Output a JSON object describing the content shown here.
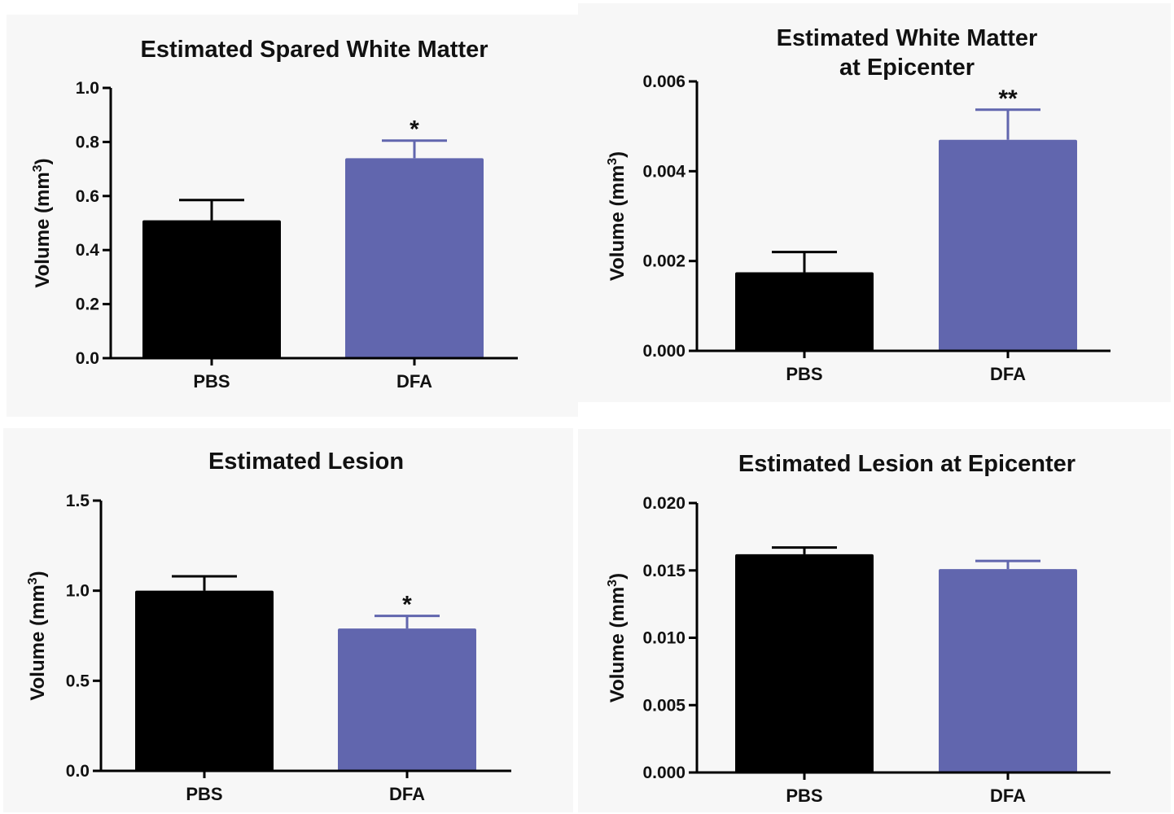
{
  "chart_data": [
    {
      "type": "bar",
      "title": [
        "Estimated Spared White Matter"
      ],
      "ylabel": "Volume (mm",
      "ylabel_sup": "3",
      "ylabel_close": ")",
      "categories": [
        "PBS",
        "DFA"
      ],
      "values": [
        0.51,
        0.74
      ],
      "errors": [
        0.075,
        0.065
      ],
      "significance": [
        "",
        "*"
      ],
      "bar_colors": [
        "#000000",
        "#6166ae"
      ],
      "ylim": [
        0,
        1.0
      ],
      "yticks": [
        "0.0",
        "0.2",
        "0.4",
        "0.6",
        "0.8",
        "1.0"
      ],
      "grid": false
    },
    {
      "type": "bar",
      "title": [
        "Estimated White Matter",
        "at Epicenter"
      ],
      "ylabel": "Volume (mm",
      "ylabel_sup": "3",
      "ylabel_close": ")",
      "categories": [
        "PBS",
        "DFA"
      ],
      "values": [
        0.00175,
        0.0047
      ],
      "errors": [
        0.00045,
        0.00067
      ],
      "significance": [
        "",
        "**"
      ],
      "bar_colors": [
        "#000000",
        "#6166ae"
      ],
      "ylim": [
        0,
        0.006
      ],
      "yticks": [
        "0.000",
        "0.002",
        "0.004",
        "0.006"
      ],
      "grid": false
    },
    {
      "type": "bar",
      "title": [
        "Estimated Lesion"
      ],
      "ylabel": "Volume (mm",
      "ylabel_sup": "3",
      "ylabel_close": ")",
      "categories": [
        "PBS",
        "DFA"
      ],
      "values": [
        1.0,
        0.79
      ],
      "errors": [
        0.08,
        0.07
      ],
      "significance": [
        "",
        "*"
      ],
      "bar_colors": [
        "#000000",
        "#6166ae"
      ],
      "ylim": [
        0,
        1.5
      ],
      "yticks": [
        "0.0",
        "0.5",
        "1.0",
        "1.5"
      ],
      "grid": false
    },
    {
      "type": "bar",
      "title": [
        "Estimated Lesion at Epicenter"
      ],
      "ylabel": "Volume (mm",
      "ylabel_sup": "3",
      "ylabel_close": ")",
      "categories": [
        "PBS",
        "DFA"
      ],
      "values": [
        0.0162,
        0.0151
      ],
      "errors": [
        0.0005,
        0.0006
      ],
      "significance": [
        "",
        ""
      ],
      "bar_colors": [
        "#000000",
        "#6166ae"
      ],
      "ylim": [
        0,
        0.02
      ],
      "yticks": [
        "0.000",
        "0.005",
        "0.010",
        "0.015",
        "0.020"
      ],
      "grid": false
    }
  ]
}
